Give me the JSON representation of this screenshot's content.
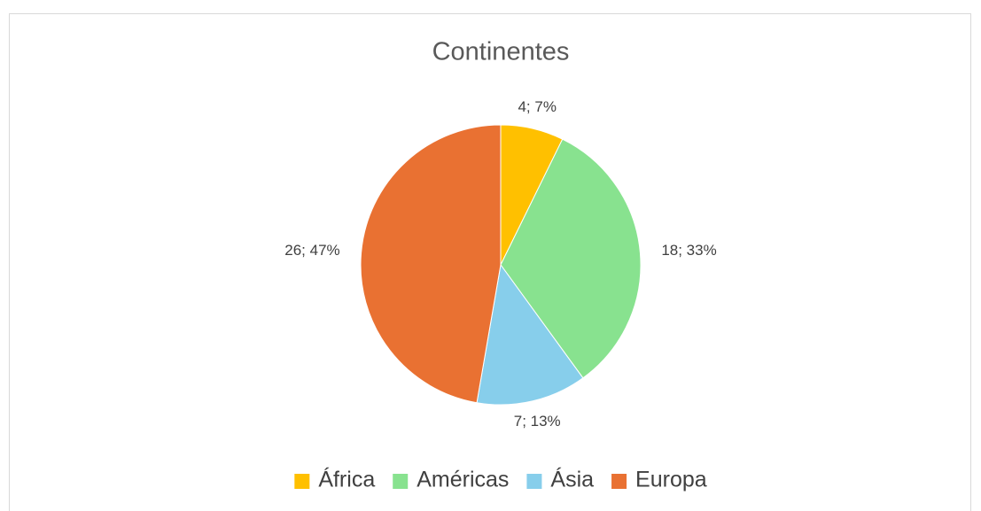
{
  "chart_data": {
    "type": "pie",
    "title": "Continentes",
    "categories": [
      "África",
      "Américas",
      "Ásia",
      "Europa"
    ],
    "values": [
      4,
      18,
      7,
      26
    ],
    "value_labels": [
      "4; 7%",
      "18; 33%",
      "7; 13%",
      "26; 47%"
    ],
    "colors": [
      "#ffc000",
      "#88e28f",
      "#87ceeb",
      "#e97132"
    ],
    "legend": "bottom"
  }
}
